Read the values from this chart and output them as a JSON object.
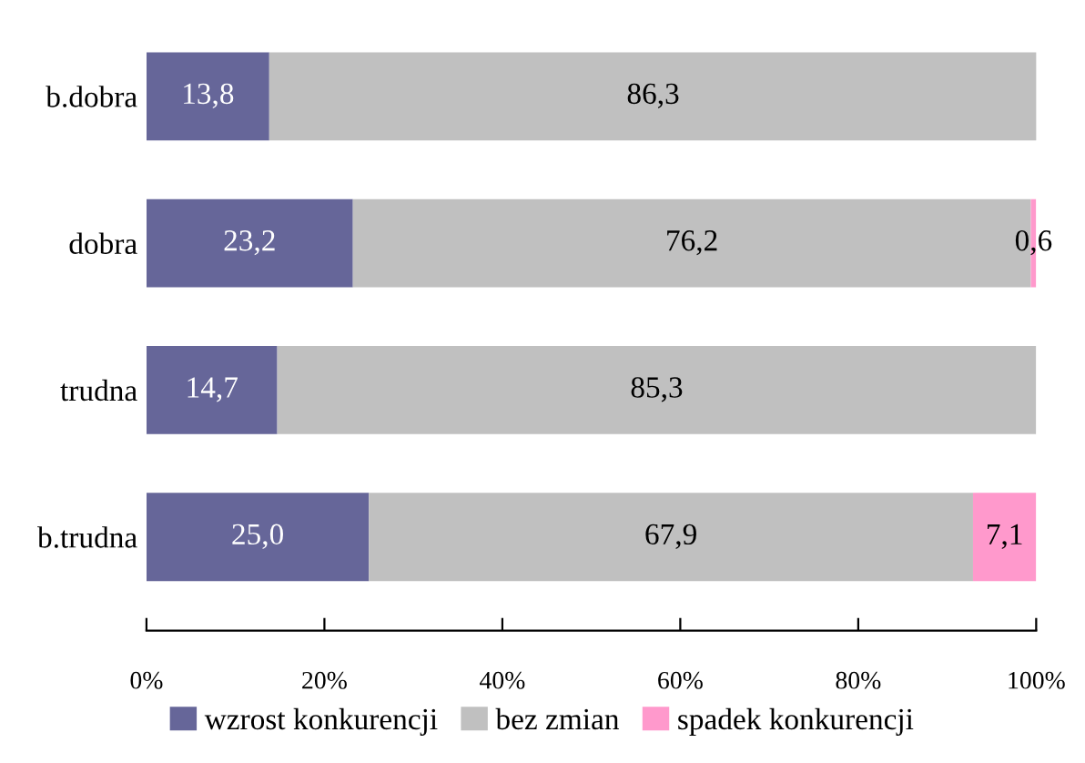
{
  "chart_data": {
    "type": "bar",
    "orientation": "horizontal",
    "stacked": true,
    "categories": [
      "b.dobra",
      "dobra",
      "trudna",
      "b.trudna"
    ],
    "series": [
      {
        "name": "wzrost konkurencji",
        "color": "#666699",
        "values": [
          13.8,
          23.2,
          14.7,
          25.0
        ],
        "value_labels": [
          "13,8",
          "23,2",
          "14,7",
          "25,0"
        ]
      },
      {
        "name": "bez zmian",
        "color": "#c0c0c0",
        "values": [
          86.3,
          76.2,
          85.3,
          67.9
        ],
        "value_labels": [
          "86,3",
          "76,2",
          "85,3",
          "67,9"
        ]
      },
      {
        "name": "spadek konkurencji",
        "color": "#ff99cc",
        "values": [
          0,
          0.6,
          0,
          7.1
        ],
        "value_labels": [
          null,
          "0,6",
          null,
          "7,1"
        ]
      }
    ],
    "xlim": [
      0,
      100
    ],
    "xticks": [
      {
        "value": 0,
        "label": "0%"
      },
      {
        "value": 20,
        "label": "20%"
      },
      {
        "value": 40,
        "label": "40%"
      },
      {
        "value": 60,
        "label": "60%"
      },
      {
        "value": 80,
        "label": "80%"
      },
      {
        "value": 100,
        "label": "100%"
      }
    ],
    "grid": false,
    "legend": "bottom"
  }
}
